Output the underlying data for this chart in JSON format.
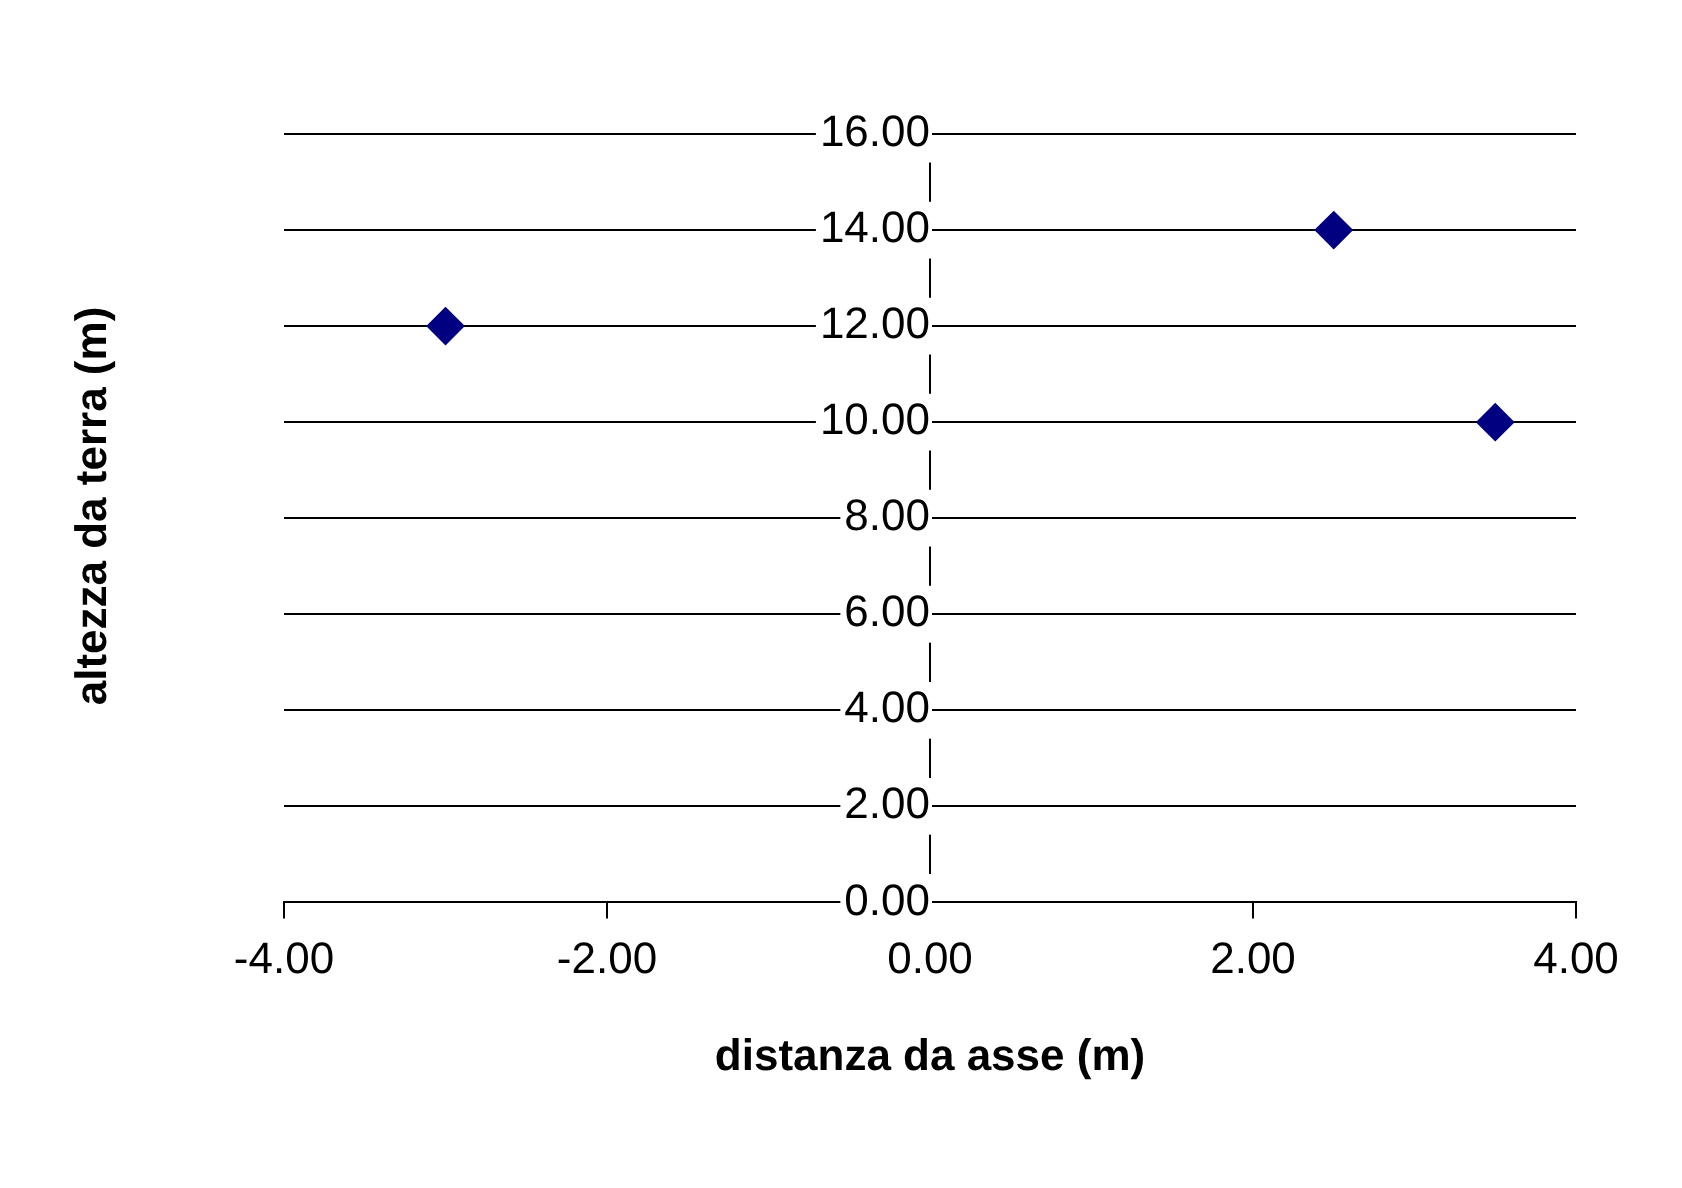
{
  "chart_data": {
    "type": "scatter",
    "xlabel": "distanza da asse (m)",
    "ylabel": "altezza da terra (m)",
    "x": [
      -3,
      2.5,
      3.5
    ],
    "series": [
      {
        "color": "#000080",
        "values": [
          12,
          14,
          10
        ]
      }
    ],
    "xlim": [
      -4,
      4
    ],
    "xticks": [
      {
        "value": -4,
        "label": "-4.00"
      },
      {
        "value": -2,
        "label": "-2.00"
      },
      {
        "value": 0,
        "label": "0.00"
      },
      {
        "value": 2,
        "label": "2.00"
      },
      {
        "value": 4,
        "label": "4.00"
      }
    ],
    "ylim": [
      0,
      16
    ],
    "yticks": [
      {
        "value": 0,
        "label": "0.00"
      },
      {
        "value": 2,
        "label": "2.00"
      },
      {
        "value": 4,
        "label": "4.00"
      },
      {
        "value": 6,
        "label": "6.00"
      },
      {
        "value": 8,
        "label": "8.00"
      },
      {
        "value": 10,
        "label": "10.00"
      },
      {
        "value": 12,
        "label": "12.00"
      },
      {
        "value": 14,
        "label": "14.00"
      },
      {
        "value": 16,
        "label": "16.00"
      }
    ],
    "grid": "y",
    "legend": false,
    "marker": "diamond"
  }
}
